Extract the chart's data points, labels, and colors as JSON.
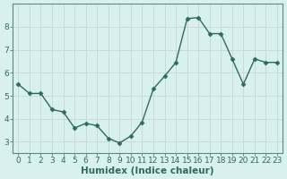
{
  "x": [
    0,
    1,
    2,
    3,
    4,
    5,
    6,
    7,
    8,
    9,
    10,
    11,
    12,
    13,
    14,
    15,
    16,
    17,
    18,
    19,
    20,
    21,
    22,
    23
  ],
  "y": [
    5.5,
    5.1,
    5.1,
    4.4,
    4.3,
    3.6,
    3.8,
    3.7,
    3.15,
    2.95,
    3.25,
    3.85,
    5.3,
    5.85,
    6.45,
    8.35,
    8.4,
    7.7,
    7.7,
    6.6,
    5.5,
    6.6,
    6.45,
    6.45
  ],
  "xlabel": "Humidex (Indice chaleur)",
  "ylabel": "",
  "xlim": [
    -0.5,
    23.5
  ],
  "ylim": [
    2.5,
    9.0
  ],
  "yticks": [
    3,
    4,
    5,
    6,
    7,
    8
  ],
  "xticks": [
    0,
    1,
    2,
    3,
    4,
    5,
    6,
    7,
    8,
    9,
    10,
    11,
    12,
    13,
    14,
    15,
    16,
    17,
    18,
    19,
    20,
    21,
    22,
    23
  ],
  "line_color": "#2e6b5e",
  "marker": "D",
  "marker_size": 2.5,
  "bg_color": "#d9f0f0",
  "grid_color": "#c8dada",
  "axis_color": "#5a8a80",
  "tick_color": "#2e6b5e",
  "xlabel_fontsize": 7.5,
  "tick_fontsize": 6.5
}
